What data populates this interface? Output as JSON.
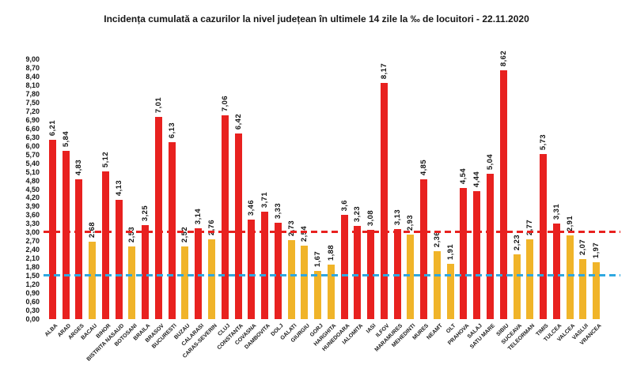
{
  "chart_data": {
    "type": "bar",
    "title": "Incidența cumulată a cazurilor la nivel județean în ultimele 14 zile la ‰ de locuitori - 22.11.2020",
    "xlabel": "",
    "ylabel": "",
    "ylim": [
      0,
      9
    ],
    "ytick_step": 0.3,
    "grid": false,
    "legend": false,
    "yticks": [
      "9,00",
      "8,70",
      "8,40",
      "8,10",
      "7,80",
      "7,50",
      "7,20",
      "6,90",
      "6,60",
      "6,30",
      "6,00",
      "5,70",
      "5,40",
      "5,10",
      "4,80",
      "4,50",
      "4,20",
      "3,90",
      "3,60",
      "3,30",
      "3,00",
      "2,70",
      "2,40",
      "2,10",
      "1,80",
      "1,50",
      "1,20",
      "0,90",
      "0,60",
      "0,30",
      "0,00"
    ],
    "categories": [
      "ALBA",
      "ARAD",
      "ARGES",
      "BACAU",
      "BIHOR",
      "BISTRITA NASAUD",
      "BOTOSANI",
      "BRAILA",
      "BRASOV",
      "BUCURESTI",
      "BUZAU",
      "CALARASI",
      "CARAS-SEVERIN",
      "CLUJ",
      "CONSTANTA",
      "COVASNA",
      "DAMBOVITA",
      "DOLJ",
      "GALATI",
      "GIURGIU",
      "GORJ",
      "HARGHITA",
      "HUNEDOARA",
      "IALOMITA",
      "IASI",
      "ILFOV",
      "MARAMURES",
      "MEHEDINTI",
      "MURES",
      "NEAMT",
      "OLT",
      "PRAHOVA",
      "SALAJ",
      "SATU MARE",
      "SIBIU",
      "SUCEAVA",
      "TELEORMAN",
      "TIMIS",
      "TULCEA",
      "VALCEA",
      "VASLUI",
      "VRANCEA"
    ],
    "values": [
      6.21,
      5.84,
      4.83,
      2.68,
      5.12,
      4.13,
      2.53,
      3.25,
      7.01,
      6.13,
      2.52,
      3.14,
      2.76,
      7.06,
      6.42,
      3.46,
      3.71,
      3.33,
      2.73,
      2.54,
      1.67,
      1.88,
      3.6,
      3.23,
      3.08,
      8.17,
      3.13,
      2.93,
      4.85,
      2.36,
      1.91,
      4.54,
      4.44,
      5.04,
      8.62,
      2.23,
      2.77,
      5.73,
      3.31,
      2.91,
      2.07,
      1.97
    ],
    "value_labels": [
      "6,21",
      "5,84",
      "4,83",
      "2,68",
      "5,12",
      "4,13",
      "2,53",
      "3,25",
      "7,01",
      "6,13",
      "2,52",
      "3,14",
      "2,76",
      "7,06",
      "6,42",
      "3,46",
      "3,71",
      "3,33",
      "2,73",
      "2,54",
      "1,67",
      "1,88",
      "3,6",
      "3,23",
      "3,08",
      "8,17",
      "3,13",
      "2,93",
      "4,85",
      "2,36",
      "1,91",
      "4,54",
      "4,44",
      "5,04",
      "8,62",
      "2,23",
      "2,77",
      "5,73",
      "3,31",
      "2,91",
      "2,07",
      "1,97"
    ],
    "colors": {
      "bar_above_threshold": "#e8211f",
      "bar_below_threshold": "#f0b429",
      "threshold_red": "#e8211f",
      "threshold_blue": "#2fa8e0",
      "text": "#161616"
    },
    "thresholds": [
      {
        "name": "red-limit",
        "value": 3.0,
        "style": "dashed",
        "color": "#e8211f"
      },
      {
        "name": "blue-limit",
        "value": 1.5,
        "style": "dashed",
        "color": "#2fa8e0"
      }
    ],
    "color_rule": "value >= 3.0 -> red, else yellow"
  }
}
